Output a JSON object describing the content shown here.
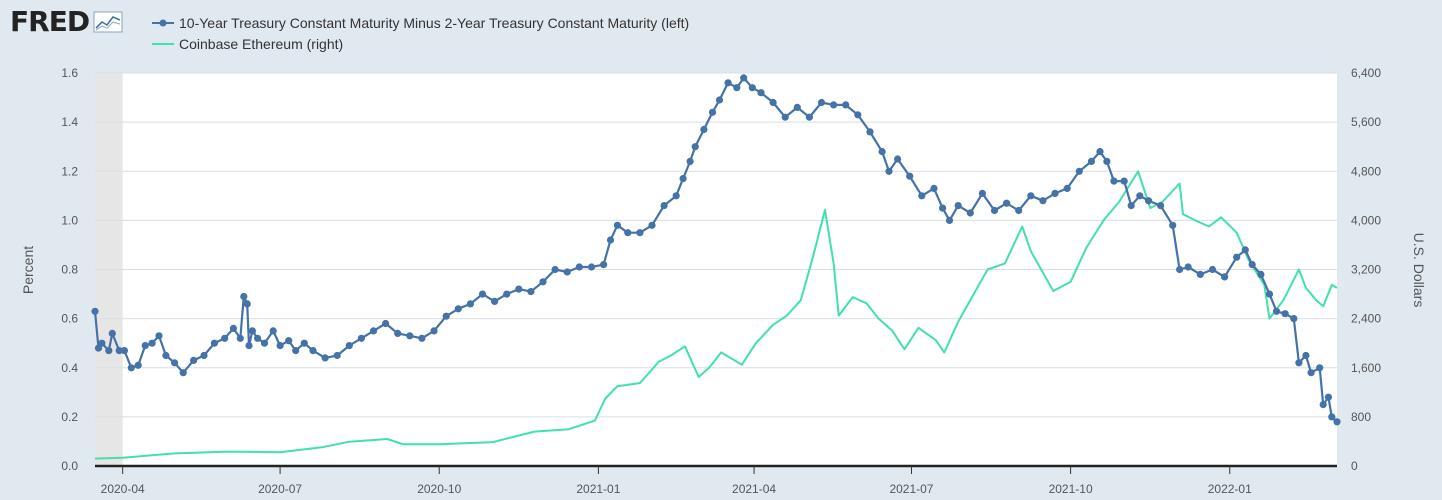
{
  "header": {
    "logo_text": "FRED",
    "legend": [
      {
        "label": "10-Year Treasury Constant Maturity Minus 2-Year Treasury Constant Maturity (left)",
        "color": "#4572a7",
        "marker": "circle"
      },
      {
        "label": "Coinbase Ethereum (right)",
        "color": "#40e0b0",
        "marker": "none"
      }
    ]
  },
  "colors": {
    "background": "#e1e9f0",
    "plot_background": "#ffffff",
    "gridline": "#d8dfe6",
    "recession_shade": "#e6e6e6",
    "spread_line": "#4572a7",
    "eth_line": "#40e0b0"
  },
  "chart_data": {
    "type": "line",
    "x_range": [
      "2020-03-16",
      "2022-03-04"
    ],
    "x_ticks": [
      "2020-04",
      "2020-07",
      "2020-10",
      "2021-01",
      "2021-04",
      "2021-07",
      "2021-10",
      "2022-01"
    ],
    "y_left": {
      "label": "Percent",
      "range": [
        0,
        1.6
      ],
      "ticks": [
        "0.0",
        "0.2",
        "0.4",
        "0.6",
        "0.8",
        "1.0",
        "1.2",
        "1.4",
        "1.6"
      ]
    },
    "y_right": {
      "label": "U.S. Dollars",
      "range": [
        0,
        6400
      ],
      "ticks": [
        "0",
        "800",
        "1,600",
        "2,400",
        "3,200",
        "4,000",
        "4,800",
        "5,600",
        "6,400"
      ]
    },
    "shaded_period": [
      "2020-03-16",
      "2020-04-01"
    ],
    "grid": true,
    "legend_position": "top-left",
    "series": [
      {
        "name": "10-Year Treasury Constant Maturity Minus 2-Year Treasury Constant Maturity (left)",
        "axis": "left",
        "points": [
          [
            "2020-03-16",
            0.63
          ],
          [
            "2020-03-18",
            0.48
          ],
          [
            "2020-03-20",
            0.5
          ],
          [
            "2020-03-24",
            0.47
          ],
          [
            "2020-03-26",
            0.54
          ],
          [
            "2020-03-30",
            0.47
          ],
          [
            "2020-04-02",
            0.47
          ],
          [
            "2020-04-06",
            0.4
          ],
          [
            "2020-04-10",
            0.41
          ],
          [
            "2020-04-14",
            0.49
          ],
          [
            "2020-04-18",
            0.5
          ],
          [
            "2020-04-22",
            0.53
          ],
          [
            "2020-04-26",
            0.45
          ],
          [
            "2020-05-01",
            0.42
          ],
          [
            "2020-05-06",
            0.38
          ],
          [
            "2020-05-12",
            0.43
          ],
          [
            "2020-05-18",
            0.45
          ],
          [
            "2020-05-24",
            0.5
          ],
          [
            "2020-05-30",
            0.52
          ],
          [
            "2020-06-04",
            0.56
          ],
          [
            "2020-06-08",
            0.52
          ],
          [
            "2020-06-13",
            0.49
          ],
          [
            "2020-06-18",
            0.52
          ],
          [
            "2020-06-22",
            0.5
          ],
          [
            "2020-06-27",
            0.55
          ],
          [
            "2020-07-01",
            0.49
          ],
          [
            "2020-07-06",
            0.51
          ],
          [
            "2020-06-10",
            0.69
          ],
          [
            "2020-06-12",
            0.66
          ],
          [
            "2020-06-15",
            0.55
          ],
          [
            "2020-07-10",
            0.47
          ],
          [
            "2020-07-15",
            0.5
          ],
          [
            "2020-07-20",
            0.47
          ],
          [
            "2020-07-27",
            0.44
          ],
          [
            "2020-08-03",
            0.45
          ],
          [
            "2020-08-10",
            0.49
          ],
          [
            "2020-08-17",
            0.52
          ],
          [
            "2020-08-24",
            0.55
          ],
          [
            "2020-08-31",
            0.58
          ],
          [
            "2020-09-07",
            0.54
          ],
          [
            "2020-09-14",
            0.53
          ],
          [
            "2020-09-21",
            0.52
          ],
          [
            "2020-09-28",
            0.55
          ],
          [
            "2020-10-05",
            0.61
          ],
          [
            "2020-10-12",
            0.64
          ],
          [
            "2020-10-19",
            0.66
          ],
          [
            "2020-10-26",
            0.7
          ],
          [
            "2020-11-02",
            0.67
          ],
          [
            "2020-11-09",
            0.7
          ],
          [
            "2020-11-16",
            0.72
          ],
          [
            "2020-11-23",
            0.71
          ],
          [
            "2020-11-30",
            0.75
          ],
          [
            "2020-12-07",
            0.8
          ],
          [
            "2020-12-14",
            0.79
          ],
          [
            "2020-12-21",
            0.81
          ],
          [
            "2020-12-28",
            0.81
          ],
          [
            "2021-01-04",
            0.82
          ],
          [
            "2021-01-08",
            0.92
          ],
          [
            "2021-01-12",
            0.98
          ],
          [
            "2021-01-18",
            0.95
          ],
          [
            "2021-01-25",
            0.95
          ],
          [
            "2021-02-01",
            0.98
          ],
          [
            "2021-02-08",
            1.06
          ],
          [
            "2021-02-15",
            1.1
          ],
          [
            "2021-02-19",
            1.17
          ],
          [
            "2021-02-23",
            1.24
          ],
          [
            "2021-02-26",
            1.3
          ],
          [
            "2021-03-03",
            1.37
          ],
          [
            "2021-03-08",
            1.44
          ],
          [
            "2021-03-12",
            1.49
          ],
          [
            "2021-03-17",
            1.56
          ],
          [
            "2021-03-22",
            1.54
          ],
          [
            "2021-03-26",
            1.58
          ],
          [
            "2021-03-31",
            1.54
          ],
          [
            "2021-04-05",
            1.52
          ],
          [
            "2021-04-12",
            1.48
          ],
          [
            "2021-04-19",
            1.42
          ],
          [
            "2021-04-26",
            1.46
          ],
          [
            "2021-05-03",
            1.42
          ],
          [
            "2021-05-10",
            1.48
          ],
          [
            "2021-05-17",
            1.47
          ],
          [
            "2021-05-24",
            1.47
          ],
          [
            "2021-05-31",
            1.43
          ],
          [
            "2021-06-07",
            1.36
          ],
          [
            "2021-06-14",
            1.28
          ],
          [
            "2021-06-18",
            1.2
          ],
          [
            "2021-06-23",
            1.25
          ],
          [
            "2021-06-30",
            1.18
          ],
          [
            "2021-07-07",
            1.1
          ],
          [
            "2021-07-14",
            1.13
          ],
          [
            "2021-07-19",
            1.05
          ],
          [
            "2021-07-23",
            1.0
          ],
          [
            "2021-07-28",
            1.06
          ],
          [
            "2021-08-04",
            1.03
          ],
          [
            "2021-08-11",
            1.11
          ],
          [
            "2021-08-18",
            1.04
          ],
          [
            "2021-08-25",
            1.07
          ],
          [
            "2021-09-01",
            1.04
          ],
          [
            "2021-09-08",
            1.1
          ],
          [
            "2021-09-15",
            1.08
          ],
          [
            "2021-09-22",
            1.11
          ],
          [
            "2021-09-29",
            1.13
          ],
          [
            "2021-10-06",
            1.2
          ],
          [
            "2021-10-13",
            1.24
          ],
          [
            "2021-10-18",
            1.28
          ],
          [
            "2021-10-22",
            1.24
          ],
          [
            "2021-10-26",
            1.16
          ],
          [
            "2021-11-01",
            1.16
          ],
          [
            "2021-11-05",
            1.06
          ],
          [
            "2021-11-10",
            1.1
          ],
          [
            "2021-11-15",
            1.08
          ],
          [
            "2021-11-22",
            1.06
          ],
          [
            "2021-11-29",
            0.98
          ],
          [
            "2021-12-03",
            0.8
          ],
          [
            "2021-12-08",
            0.81
          ],
          [
            "2021-12-15",
            0.78
          ],
          [
            "2021-12-22",
            0.8
          ],
          [
            "2021-12-29",
            0.77
          ],
          [
            "2022-01-05",
            0.85
          ],
          [
            "2022-01-10",
            0.88
          ],
          [
            "2022-01-14",
            0.82
          ],
          [
            "2022-01-19",
            0.78
          ],
          [
            "2022-01-24",
            0.7
          ],
          [
            "2022-01-28",
            0.63
          ],
          [
            "2022-02-02",
            0.62
          ],
          [
            "2022-02-07",
            0.6
          ],
          [
            "2022-02-10",
            0.42
          ],
          [
            "2022-02-14",
            0.45
          ],
          [
            "2022-02-17",
            0.38
          ],
          [
            "2022-02-22",
            0.4
          ],
          [
            "2022-02-24",
            0.25
          ],
          [
            "2022-02-27",
            0.28
          ],
          [
            "2022-03-01",
            0.2
          ],
          [
            "2022-03-04",
            0.18
          ]
        ]
      },
      {
        "name": "Coinbase Ethereum (right)",
        "axis": "right",
        "points": [
          [
            "2020-03-16",
            120
          ],
          [
            "2020-04-01",
            135
          ],
          [
            "2020-05-01",
            205
          ],
          [
            "2020-06-01",
            235
          ],
          [
            "2020-07-01",
            225
          ],
          [
            "2020-07-25",
            305
          ],
          [
            "2020-08-10",
            395
          ],
          [
            "2020-09-01",
            440
          ],
          [
            "2020-09-10",
            355
          ],
          [
            "2020-10-01",
            355
          ],
          [
            "2020-11-01",
            390
          ],
          [
            "2020-11-25",
            560
          ],
          [
            "2020-12-15",
            600
          ],
          [
            "2020-12-30",
            740
          ],
          [
            "2021-01-05",
            1100
          ],
          [
            "2021-01-12",
            1300
          ],
          [
            "2021-01-25",
            1350
          ],
          [
            "2021-02-05",
            1700
          ],
          [
            "2021-02-12",
            1800
          ],
          [
            "2021-02-20",
            1950
          ],
          [
            "2021-02-28",
            1450
          ],
          [
            "2021-03-06",
            1600
          ],
          [
            "2021-03-13",
            1850
          ],
          [
            "2021-03-25",
            1650
          ],
          [
            "2021-04-02",
            2000
          ],
          [
            "2021-04-12",
            2300
          ],
          [
            "2021-04-20",
            2450
          ],
          [
            "2021-04-28",
            2700
          ],
          [
            "2021-05-05",
            3400
          ],
          [
            "2021-05-12",
            4170
          ],
          [
            "2021-05-17",
            3300
          ],
          [
            "2021-05-20",
            2450
          ],
          [
            "2021-05-28",
            2750
          ],
          [
            "2021-06-05",
            2650
          ],
          [
            "2021-06-12",
            2400
          ],
          [
            "2021-06-20",
            2200
          ],
          [
            "2021-06-27",
            1900
          ],
          [
            "2021-07-05",
            2250
          ],
          [
            "2021-07-15",
            2050
          ],
          [
            "2021-07-20",
            1850
          ],
          [
            "2021-07-28",
            2350
          ],
          [
            "2021-08-05",
            2750
          ],
          [
            "2021-08-14",
            3200
          ],
          [
            "2021-08-24",
            3300
          ],
          [
            "2021-09-03",
            3900
          ],
          [
            "2021-09-08",
            3500
          ],
          [
            "2021-09-21",
            2850
          ],
          [
            "2021-10-01",
            3000
          ],
          [
            "2021-10-10",
            3550
          ],
          [
            "2021-10-20",
            4000
          ],
          [
            "2021-10-29",
            4300
          ],
          [
            "2021-11-09",
            4800
          ],
          [
            "2021-11-16",
            4200
          ],
          [
            "2021-11-23",
            4300
          ],
          [
            "2021-12-03",
            4600
          ],
          [
            "2021-12-05",
            4100
          ],
          [
            "2021-12-12",
            4000
          ],
          [
            "2021-12-20",
            3900
          ],
          [
            "2021-12-27",
            4050
          ],
          [
            "2022-01-05",
            3800
          ],
          [
            "2022-01-12",
            3350
          ],
          [
            "2022-01-21",
            2950
          ],
          [
            "2022-01-24",
            2400
          ],
          [
            "2022-02-01",
            2700
          ],
          [
            "2022-02-10",
            3200
          ],
          [
            "2022-02-14",
            2900
          ],
          [
            "2022-02-20",
            2700
          ],
          [
            "2022-02-24",
            2600
          ],
          [
            "2022-03-01",
            2950
          ],
          [
            "2022-03-04",
            2900
          ]
        ]
      }
    ]
  }
}
